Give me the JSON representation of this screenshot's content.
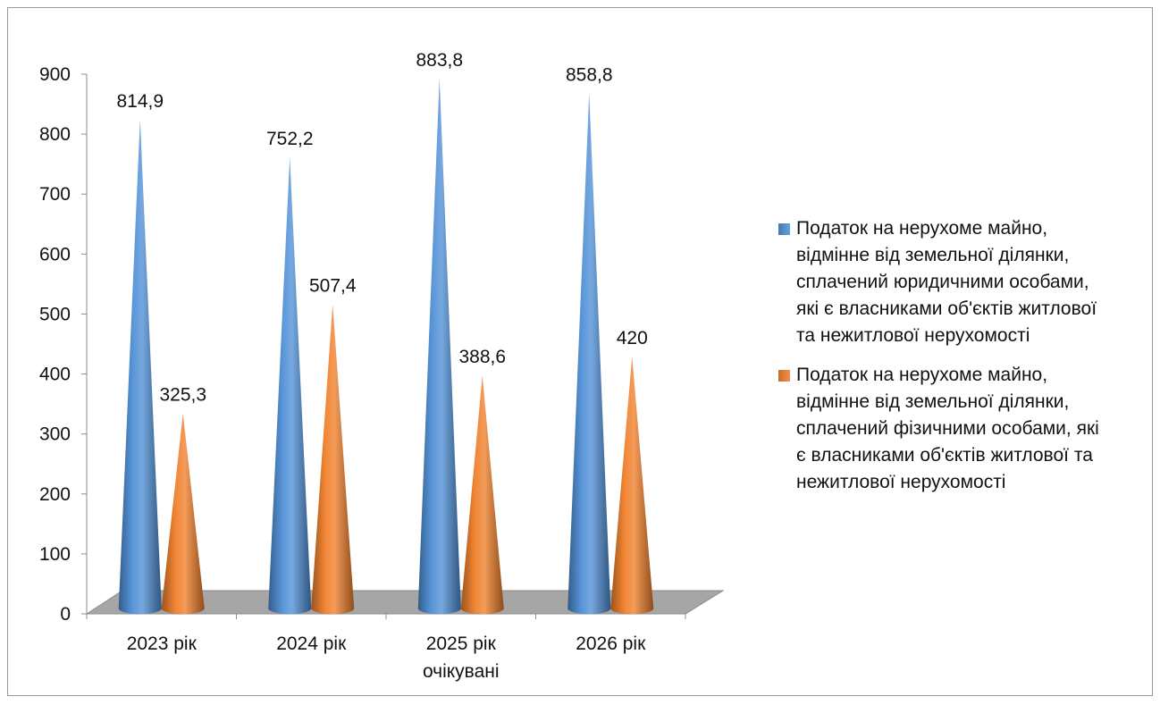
{
  "chart_data": {
    "type": "bar",
    "style": "3d-cones",
    "title": "",
    "xlabel": "",
    "ylabel": "",
    "categories": [
      [
        "2023 рік"
      ],
      [
        "2024 рік"
      ],
      [
        "2025 рік",
        "очікувані"
      ],
      [
        "2026 рік"
      ]
    ],
    "series": [
      {
        "name": "Податок на нерухоме майно, відмінне від земельної ділянки, сплачений юридичними особами, які є власниками об'єктів житлової та нежитлової нерухомості",
        "name_lines": [
          "Податок на нерухоме майно,",
          "відмінне від земельної ділянки,",
          "сплачений юридичними особами,",
          "які є власниками об'єктів житлової",
          "та нежитлової нерухомості"
        ],
        "color": "#4f8fd6",
        "values": [
          814.9,
          752.2,
          883.8,
          858.8
        ],
        "labels": [
          "814,9",
          "752,2",
          "883,8",
          "858,8"
        ]
      },
      {
        "name": "Податок на нерухоме майно, відмінне від земельної ділянки, сплачений фізичними особами, які є власниками об'єктів житлової та нежитлової нерухомості",
        "name_lines": [
          "Податок на нерухоме майно,",
          "відмінне від земельної ділянки,",
          "сплачений фізичними особами, які",
          "є власниками об'єктів житлової та",
          "нежитлової нерухомості"
        ],
        "color": "#f07f2a",
        "values": [
          325.3,
          507.4,
          388.6,
          420
        ],
        "labels": [
          "325,3",
          "507,4",
          "388,6",
          "420"
        ]
      }
    ],
    "ylim": [
      0,
      900
    ],
    "yticks": [
      0,
      100,
      200,
      300,
      400,
      500,
      600,
      700,
      800,
      900
    ],
    "grid": false,
    "legend_position": "right"
  }
}
